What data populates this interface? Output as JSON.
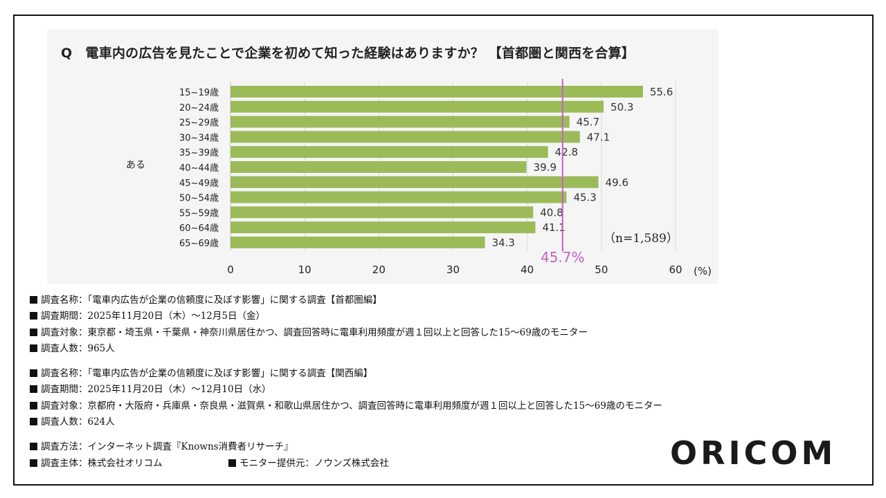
{
  "chart_data": {
    "type": "bar",
    "orientation": "horizontal",
    "title": "Q　電車内の広告を見たことで企業を初めて知った経験はありますか？ 【首都圏と関西を合算】",
    "group_label": "ある",
    "categories": [
      "15~19歳",
      "20~24歳",
      "25~29歳",
      "30~34歳",
      "35~39歳",
      "40~44歳",
      "45~49歳",
      "50~54歳",
      "55~59歳",
      "60~64歳",
      "65~69歳"
    ],
    "values": [
      55.6,
      50.3,
      45.7,
      47.1,
      42.8,
      39.9,
      49.6,
      45.3,
      40.8,
      41.1,
      34.3
    ],
    "value_labels": [
      "55.6",
      "50.3",
      "45.7",
      "47.1",
      "42.8",
      "39.9",
      "49.6",
      "45.3",
      "40.8",
      "41.1",
      "34.3"
    ],
    "xlim": [
      0,
      60
    ],
    "xticks": [
      "0",
      "10",
      "20",
      "30",
      "40",
      "50",
      "60"
    ],
    "xlabel": "(%)",
    "sample_size": "（n=1,589）",
    "reference_line": {
      "value": 45.7,
      "label": "45.7%",
      "color": "#c45fc2"
    },
    "bar_color": "#9bbb59",
    "grid": true
  },
  "notes": {
    "kanto": [
      "調査名称：「電車内広告が企業の信頼度に及ぼす影響」に関する調査【首都圏編】",
      "調査期間：2025年11月20日（木）～12月5日（金）",
      "調査対象：東京都・埼玉県・千葉県・神奈川県居住かつ、調査回答時に電車利用頻度が週１回以上と回答した15～69歳のモニター",
      "調査人数：965人"
    ],
    "kansai": [
      "調査名称：「電車内広告が企業の信頼度に及ぼす影響」に関する調査【関西編】",
      "調査期間：2025年11月20日（木）～12月10日（水）",
      "調査対象：京都府・大阪府・兵庫県・奈良県・滋賀県・和歌山県居住かつ、調査回答時に電車利用頻度が週１回以上と回答した15～69歳のモニター",
      "調査人数：624人"
    ],
    "method": "調査方法：インターネット調査『Knowns消費者リサーチ』",
    "sponsor": "調査主体：株式会社オリコム",
    "provider": "モニター提供元：ノウンズ株式会社"
  },
  "logo": {
    "text": "ORICOM"
  }
}
